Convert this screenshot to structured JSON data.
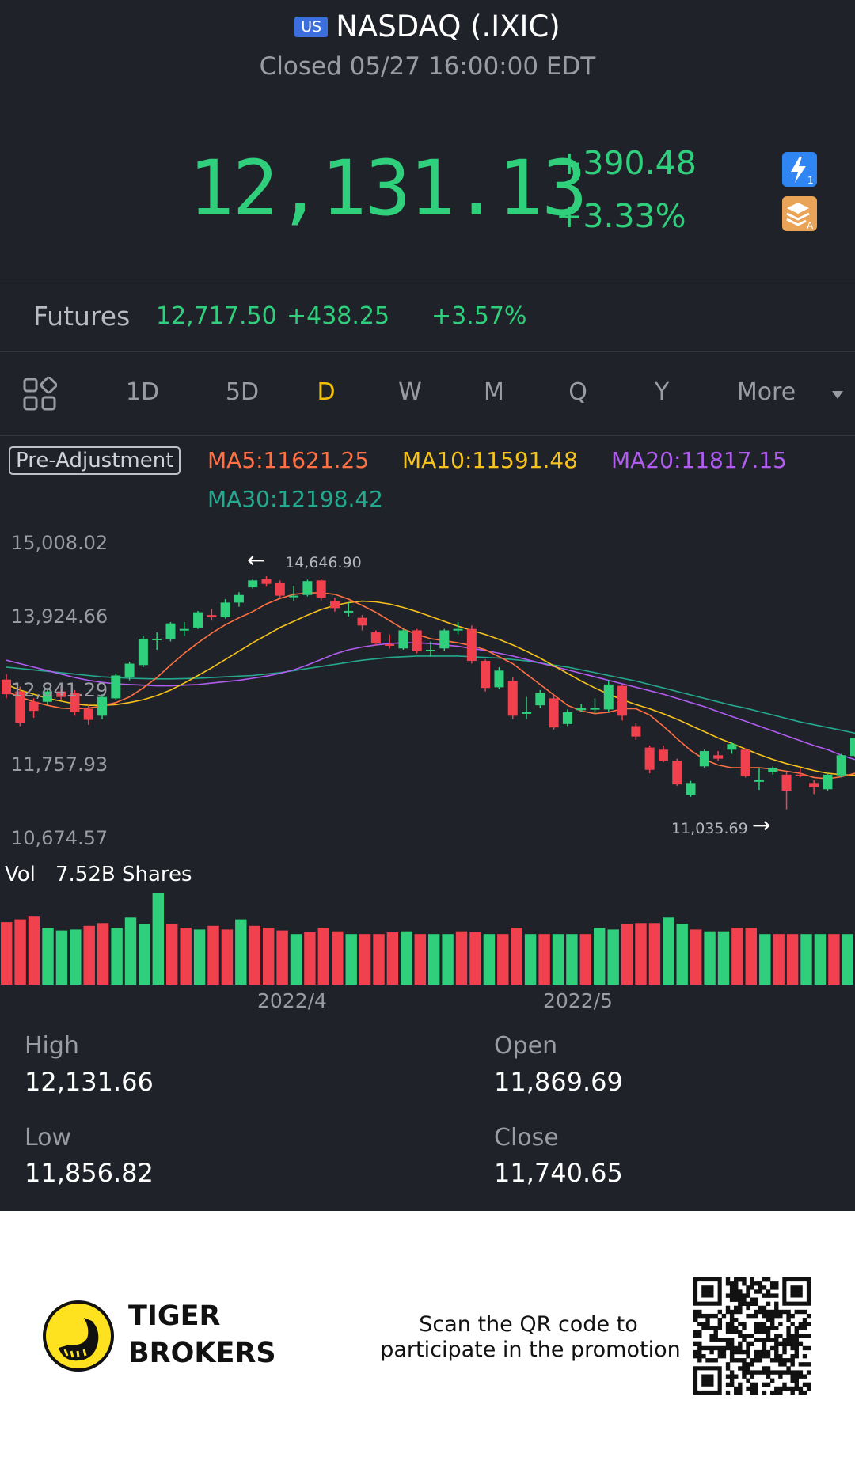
{
  "header": {
    "market_flag": "US",
    "title": "NASDAQ (.IXIC)",
    "status": "Closed 05/27 16:00:00 EDT",
    "price": "12,131.13",
    "change": "+390.48",
    "change_pct": "+3.33%",
    "icons": [
      "lightning-level1-icon",
      "stack-level-a-icon"
    ]
  },
  "futures": {
    "label": "Futures",
    "price": "12,717.50",
    "change": "+438.25",
    "change_pct": "+3.57%"
  },
  "tabs": {
    "items": [
      "1D",
      "5D",
      "D",
      "W",
      "M",
      "Q",
      "Y",
      "More"
    ],
    "active": "D",
    "grid_icon": "grid-layout-icon",
    "dropdown_icon": "triangle-down-icon"
  },
  "indicators": {
    "adjust_label": "Pre-Adjustment",
    "ma5": "MA5:11621.25",
    "ma10": "MA10:11591.48",
    "ma20": "MA20:11817.15",
    "ma30": "MA30:12198.42"
  },
  "chart_data": {
    "type": "candlestick",
    "y_ticks": [
      "15,008.02",
      "13,924.66",
      "12,841.29",
      "11,757.93",
      "10,674.57"
    ],
    "ylim": [
      10674.57,
      15008.02
    ],
    "x_ticks": [
      "2022/4",
      "2022/5"
    ],
    "annotations": {
      "high": "14,646.90",
      "low": "11,035.69"
    },
    "colors": {
      "up": "#2fcf7b",
      "down": "#f2414e",
      "ma5": "#ff7142",
      "ma10": "#f6c21c",
      "ma20": "#b05cf0",
      "ma30": "#24a98e"
    },
    "candles": [
      {
        "o": 12970,
        "c": 12760,
        "h": 13050,
        "l": 12700
      },
      {
        "o": 12800,
        "c": 12350,
        "h": 12870,
        "l": 12300
      },
      {
        "o": 12650,
        "c": 12520,
        "h": 12700,
        "l": 12420
      },
      {
        "o": 12650,
        "c": 12800,
        "h": 12850,
        "l": 12600
      },
      {
        "o": 12800,
        "c": 12720,
        "h": 12870,
        "l": 12680
      },
      {
        "o": 12780,
        "c": 12500,
        "h": 12820,
        "l": 12450
      },
      {
        "o": 12550,
        "c": 12390,
        "h": 12600,
        "l": 12320
      },
      {
        "o": 12450,
        "c": 12720,
        "h": 12760,
        "l": 12400
      },
      {
        "o": 12700,
        "c": 13030,
        "h": 13060,
        "l": 12680
      },
      {
        "o": 13000,
        "c": 13200,
        "h": 13230,
        "l": 12960
      },
      {
        "o": 13180,
        "c": 13560,
        "h": 13600,
        "l": 13150
      },
      {
        "o": 13550,
        "c": 13560,
        "h": 13650,
        "l": 13400
      },
      {
        "o": 13550,
        "c": 13780,
        "h": 13800,
        "l": 13520
      },
      {
        "o": 13700,
        "c": 13700,
        "h": 13800,
        "l": 13600
      },
      {
        "o": 13720,
        "c": 13940,
        "h": 13960,
        "l": 13700
      },
      {
        "o": 13900,
        "c": 13870,
        "h": 13990,
        "l": 13820
      },
      {
        "o": 13870,
        "c": 14080,
        "h": 14130,
        "l": 13850
      },
      {
        "o": 14080,
        "c": 14190,
        "h": 14230,
        "l": 14020
      },
      {
        "o": 14300,
        "c": 14400,
        "h": 14420,
        "l": 14280
      },
      {
        "o": 14420,
        "c": 14350,
        "h": 14460,
        "l": 14310
      },
      {
        "o": 14370,
        "c": 14180,
        "h": 14400,
        "l": 14150
      },
      {
        "o": 14180,
        "c": 14180,
        "h": 14320,
        "l": 14100
      },
      {
        "o": 14190,
        "c": 14390,
        "h": 14410,
        "l": 14170
      },
      {
        "o": 14400,
        "c": 14150,
        "h": 14420,
        "l": 14100
      },
      {
        "o": 14100,
        "c": 14000,
        "h": 14150,
        "l": 13950
      },
      {
        "o": 13960,
        "c": 13960,
        "h": 14080,
        "l": 13880
      },
      {
        "o": 13860,
        "c": 13750,
        "h": 13900,
        "l": 13680
      },
      {
        "o": 13650,
        "c": 13490,
        "h": 13680,
        "l": 13460
      },
      {
        "o": 13480,
        "c": 13460,
        "h": 13620,
        "l": 13420
      },
      {
        "o": 13420,
        "c": 13680,
        "h": 13700,
        "l": 13400
      },
      {
        "o": 13680,
        "c": 13380,
        "h": 13700,
        "l": 13350
      },
      {
        "o": 13380,
        "c": 13400,
        "h": 13520,
        "l": 13300
      },
      {
        "o": 13420,
        "c": 13680,
        "h": 13700,
        "l": 13380
      },
      {
        "o": 13700,
        "c": 13700,
        "h": 13800,
        "l": 13620
      },
      {
        "o": 13700,
        "c": 13240,
        "h": 13750,
        "l": 13200
      },
      {
        "o": 13240,
        "c": 12850,
        "h": 13260,
        "l": 12800
      },
      {
        "o": 12860,
        "c": 13100,
        "h": 13150,
        "l": 12830
      },
      {
        "o": 12950,
        "c": 12450,
        "h": 13000,
        "l": 12400
      },
      {
        "o": 12500,
        "c": 12500,
        "h": 12720,
        "l": 12400
      },
      {
        "o": 12600,
        "c": 12780,
        "h": 12820,
        "l": 12560
      },
      {
        "o": 12700,
        "c": 12280,
        "h": 12740,
        "l": 12250
      },
      {
        "o": 12330,
        "c": 12500,
        "h": 12540,
        "l": 12300
      },
      {
        "o": 12530,
        "c": 12560,
        "h": 12620,
        "l": 12500
      },
      {
        "o": 12560,
        "c": 12560,
        "h": 12700,
        "l": 12480
      },
      {
        "o": 12540,
        "c": 12900,
        "h": 12960,
        "l": 12500
      },
      {
        "o": 12880,
        "c": 12450,
        "h": 12900,
        "l": 12380
      },
      {
        "o": 12300,
        "c": 12150,
        "h": 12350,
        "l": 12100
      },
      {
        "o": 11990,
        "c": 11670,
        "h": 12020,
        "l": 11620
      },
      {
        "o": 11960,
        "c": 11800,
        "h": 12020,
        "l": 11780
      },
      {
        "o": 11800,
        "c": 11460,
        "h": 11830,
        "l": 11440
      },
      {
        "o": 11310,
        "c": 11480,
        "h": 11510,
        "l": 11280
      },
      {
        "o": 11720,
        "c": 11940,
        "h": 11960,
        "l": 11700
      },
      {
        "o": 11880,
        "c": 11830,
        "h": 11940,
        "l": 11800
      },
      {
        "o": 11960,
        "c": 12040,
        "h": 12070,
        "l": 11900
      },
      {
        "o": 11960,
        "c": 11580,
        "h": 11980,
        "l": 11560
      },
      {
        "o": 11500,
        "c": 11520,
        "h": 11690,
        "l": 11380
      },
      {
        "o": 11640,
        "c": 11690,
        "h": 11720,
        "l": 11600
      },
      {
        "o": 11600,
        "c": 11370,
        "h": 11640,
        "l": 11100
      },
      {
        "o": 11600,
        "c": 11580,
        "h": 11700,
        "l": 11560
      },
      {
        "o": 11480,
        "c": 11420,
        "h": 11520,
        "l": 11320
      },
      {
        "o": 11390,
        "c": 11600,
        "h": 11630,
        "l": 11370
      },
      {
        "o": 11590,
        "c": 11880,
        "h": 11900,
        "l": 11560
      },
      {
        "o": 11870,
        "c": 12130,
        "h": 12130,
        "l": 11850
      }
    ],
    "ma5": [
      12800,
      12720,
      12650,
      12600,
      12560,
      12550,
      12560,
      12590,
      12640,
      12720,
      12850,
      13000,
      13180,
      13350,
      13500,
      13640,
      13760,
      13860,
      13950,
      14060,
      14140,
      14200,
      14220,
      14220,
      14200,
      14130,
      14040,
      13940,
      13820,
      13700,
      13620,
      13560,
      13530,
      13500,
      13460,
      13400,
      13300,
      13200,
      13050,
      12900,
      12750,
      12600,
      12520,
      12480,
      12500,
      12550,
      12550,
      12460,
      12300,
      12120,
      11950,
      11820,
      11740,
      11700,
      11700,
      11700,
      11680,
      11650,
      11620,
      11560,
      11540,
      11570,
      11621
    ],
    "ma10": [
      12900,
      12820,
      12760,
      12700,
      12660,
      12620,
      12600,
      12600,
      12610,
      12640,
      12680,
      12740,
      12820,
      12920,
      13030,
      13140,
      13260,
      13380,
      13500,
      13610,
      13720,
      13810,
      13900,
      13980,
      14040,
      14080,
      14100,
      14090,
      14060,
      14010,
      13950,
      13880,
      13810,
      13740,
      13680,
      13620,
      13550,
      13470,
      13380,
      13280,
      13170,
      13060,
      12950,
      12850,
      12760,
      12680,
      12610,
      12550,
      12480,
      12400,
      12310,
      12220,
      12130,
      12050,
      11970,
      11890,
      11820,
      11760,
      11710,
      11660,
      11620,
      11600,
      11591
    ],
    "ma20": [
      13250,
      13200,
      13150,
      13100,
      13050,
      13000,
      12960,
      12930,
      12910,
      12900,
      12890,
      12880,
      12880,
      12890,
      12900,
      12920,
      12940,
      12960,
      12990,
      13020,
      13060,
      13110,
      13180,
      13260,
      13340,
      13400,
      13440,
      13470,
      13490,
      13500,
      13500,
      13490,
      13470,
      13450,
      13420,
      13390,
      13350,
      13310,
      13260,
      13210,
      13160,
      13110,
      13060,
      13010,
      12960,
      12910,
      12860,
      12810,
      12760,
      12700,
      12640,
      12580,
      12510,
      12440,
      12370,
      12300,
      12230,
      12160,
      12090,
      12020,
      11960,
      11880,
      11817
    ],
    "ma30": [
      13150,
      13130,
      13110,
      13090,
      13070,
      13050,
      13030,
      13010,
      13000,
      12990,
      12985,
      12980,
      12980,
      12985,
      12990,
      13000,
      13010,
      13020,
      13030,
      13050,
      13070,
      13100,
      13130,
      13160,
      13190,
      13220,
      13250,
      13270,
      13290,
      13300,
      13310,
      13310,
      13310,
      13310,
      13300,
      13290,
      13280,
      13260,
      13240,
      13210,
      13180,
      13150,
      13110,
      13070,
      13030,
      12990,
      12950,
      12900,
      12850,
      12800,
      12750,
      12700,
      12650,
      12600,
      12560,
      12510,
      12460,
      12410,
      12360,
      12320,
      12280,
      12240,
      12198
    ]
  },
  "volume": {
    "label": "Vol",
    "value": "7.52B Shares",
    "bars": [
      {
        "v": 0.68,
        "up": false
      },
      {
        "v": 0.71,
        "up": false
      },
      {
        "v": 0.74,
        "up": false
      },
      {
        "v": 0.62,
        "up": true
      },
      {
        "v": 0.59,
        "up": true
      },
      {
        "v": 0.6,
        "up": true
      },
      {
        "v": 0.64,
        "up": false
      },
      {
        "v": 0.67,
        "up": false
      },
      {
        "v": 0.62,
        "up": true
      },
      {
        "v": 0.73,
        "up": true
      },
      {
        "v": 0.66,
        "up": true
      },
      {
        "v": 1.0,
        "up": true
      },
      {
        "v": 0.66,
        "up": false
      },
      {
        "v": 0.62,
        "up": false
      },
      {
        "v": 0.6,
        "up": true
      },
      {
        "v": 0.64,
        "up": false
      },
      {
        "v": 0.6,
        "up": false
      },
      {
        "v": 0.71,
        "up": true
      },
      {
        "v": 0.64,
        "up": false
      },
      {
        "v": 0.62,
        "up": false
      },
      {
        "v": 0.59,
        "up": false
      },
      {
        "v": 0.55,
        "up": true
      },
      {
        "v": 0.57,
        "up": false
      },
      {
        "v": 0.62,
        "up": false
      },
      {
        "v": 0.58,
        "up": false
      },
      {
        "v": 0.55,
        "up": true
      },
      {
        "v": 0.55,
        "up": false
      },
      {
        "v": 0.55,
        "up": false
      },
      {
        "v": 0.57,
        "up": false
      },
      {
        "v": 0.58,
        "up": true
      },
      {
        "v": 0.55,
        "up": false
      },
      {
        "v": 0.55,
        "up": true
      },
      {
        "v": 0.55,
        "up": true
      },
      {
        "v": 0.58,
        "up": false
      },
      {
        "v": 0.57,
        "up": false
      },
      {
        "v": 0.55,
        "up": true
      },
      {
        "v": 0.55,
        "up": false
      },
      {
        "v": 0.62,
        "up": false
      },
      {
        "v": 0.55,
        "up": true
      },
      {
        "v": 0.55,
        "up": false
      },
      {
        "v": 0.55,
        "up": true
      },
      {
        "v": 0.55,
        "up": true
      },
      {
        "v": 0.55,
        "up": false
      },
      {
        "v": 0.62,
        "up": true
      },
      {
        "v": 0.6,
        "up": true
      },
      {
        "v": 0.66,
        "up": false
      },
      {
        "v": 0.67,
        "up": false
      },
      {
        "v": 0.67,
        "up": false
      },
      {
        "v": 0.73,
        "up": true
      },
      {
        "v": 0.66,
        "up": true
      },
      {
        "v": 0.6,
        "up": false
      },
      {
        "v": 0.58,
        "up": true
      },
      {
        "v": 0.58,
        "up": true
      },
      {
        "v": 0.62,
        "up": false
      },
      {
        "v": 0.62,
        "up": false
      },
      {
        "v": 0.55,
        "up": true
      },
      {
        "v": 0.55,
        "up": false
      },
      {
        "v": 0.55,
        "up": false
      },
      {
        "v": 0.55,
        "up": true
      },
      {
        "v": 0.55,
        "up": true
      },
      {
        "v": 0.55,
        "up": false
      },
      {
        "v": 0.55,
        "up": true
      }
    ]
  },
  "stats": {
    "high_label": "High",
    "high": "12,131.66",
    "open_label": "Open",
    "open": "11,869.69",
    "low_label": "Low",
    "low": "11,856.82",
    "close_label": "Close",
    "close": "11,740.65"
  },
  "footer": {
    "brand_line1": "TIGER",
    "brand_line2": "BROKERS",
    "promo_line1": "Scan the QR code to",
    "promo_line2": "participate in the promotion",
    "logo_icon": "tiger-logo-icon",
    "qr_icon": "qr-code-icon"
  }
}
